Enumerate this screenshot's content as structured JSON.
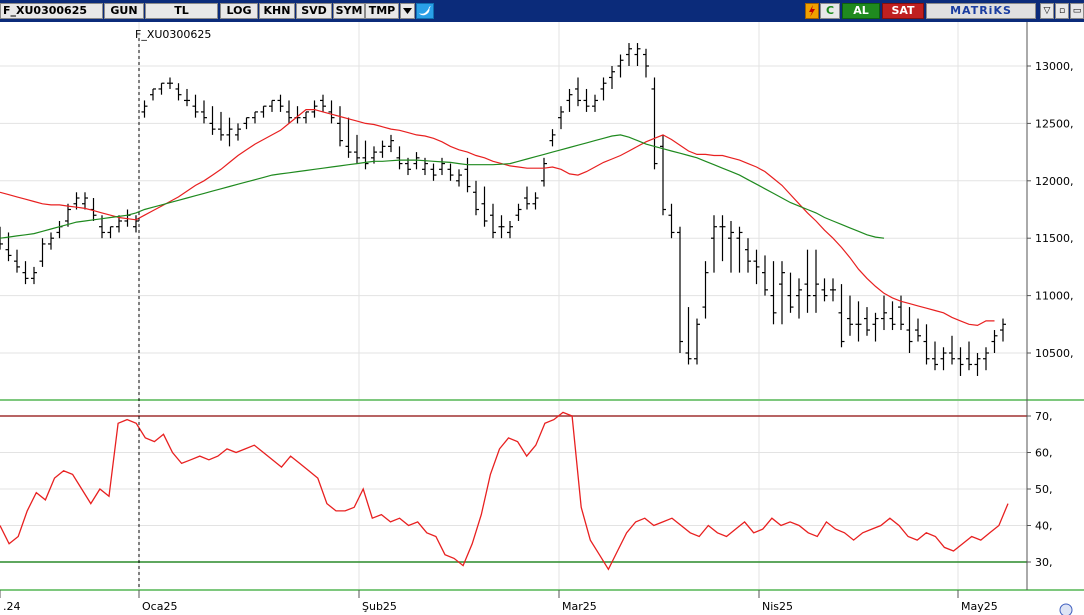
{
  "toolbar": {
    "symbol": "F_XU0300625",
    "period": "GUN",
    "currency": "TL",
    "log": "LOG",
    "khn": "KHN",
    "svd": "SVD",
    "sym": "SYM",
    "tmp": "TMP",
    "dropdown_icon": "chevron-down-icon",
    "twitter_icon": "twitter-icon",
    "lightning_icon": "lightning-icon",
    "c_label": "C",
    "buy_label": "AL",
    "sell_label": "SAT",
    "brand": "MATRiKS",
    "window_controls": [
      "▽",
      "▫",
      "▭"
    ]
  },
  "chart_data": [
    {
      "type": "ohlc",
      "title": "F_XU0300625",
      "yticks": [
        "13000,",
        "12500,",
        "12000,",
        "11500,",
        "11000,",
        "10500,"
      ],
      "ylim": [
        10200,
        13250
      ],
      "xticks": [
        ".24",
        "Oca25",
        "Şub25",
        "Mar25",
        "Nis25",
        "May25"
      ],
      "series": [
        {
          "name": "price",
          "color": "#000000",
          "high": [
            11600,
            11550,
            11400,
            11300,
            11250,
            11500,
            11550,
            11650,
            11800,
            11900,
            11900,
            11850,
            11700,
            11600,
            11700,
            11750,
            11700,
            12700,
            12800,
            12850,
            12900,
            12850,
            12800,
            12750,
            12700,
            12650,
            12600,
            12550,
            12500,
            12550,
            12600,
            12650,
            12700,
            12750,
            12700,
            12650,
            12600,
            12700,
            12750,
            12700,
            12650,
            12550,
            12400,
            12350,
            12300,
            12350,
            12400,
            12300,
            12200,
            12250,
            12200,
            12150,
            12200,
            12150,
            12100,
            12200,
            12000,
            11950,
            11800,
            11700,
            11650,
            11800,
            11950,
            11900,
            12200,
            12450,
            12650,
            12800,
            12900,
            12800,
            12750,
            12900,
            13000,
            13100,
            13200,
            13200,
            13150,
            12900,
            12400,
            11800,
            11600,
            10900,
            10800,
            11300,
            11700,
            11700,
            11650,
            11600,
            11500,
            11400,
            11350,
            11300,
            11300,
            11200,
            11150,
            11400,
            11400,
            11150,
            11150,
            11100,
            11000,
            10950,
            10900,
            10850,
            11000,
            10950,
            11000,
            10900,
            10800,
            10750,
            10600,
            10550,
            10650,
            10550,
            10600,
            10500,
            10550,
            10700,
            10800
          ],
          "low": [
            11400,
            11300,
            11200,
            11100,
            11100,
            11250,
            11400,
            11500,
            11600,
            11750,
            11750,
            11650,
            11500,
            11500,
            11550,
            11600,
            11550,
            12550,
            12700,
            12750,
            12800,
            12700,
            12650,
            12550,
            12500,
            12400,
            12350,
            12300,
            12350,
            12450,
            12500,
            12550,
            12600,
            12600,
            12500,
            12500,
            12500,
            12550,
            12600,
            12500,
            12300,
            12200,
            12150,
            12100,
            12150,
            12200,
            12250,
            12100,
            12050,
            12100,
            12050,
            12000,
            12050,
            12000,
            11950,
            11900,
            11700,
            11600,
            11500,
            11500,
            11500,
            11650,
            11750,
            11750,
            11950,
            12300,
            12450,
            12600,
            12650,
            12600,
            12600,
            12700,
            12800,
            12900,
            13000,
            13000,
            12900,
            12100,
            11700,
            11500,
            10500,
            10400,
            10400,
            10800,
            11200,
            11300,
            11200,
            11200,
            11200,
            11100,
            11000,
            10750,
            10750,
            10850,
            10800,
            10850,
            10850,
            10950,
            10950,
            10550,
            10650,
            10600,
            10650,
            10600,
            10700,
            10700,
            10700,
            10500,
            10600,
            10400,
            10350,
            10350,
            10400,
            10300,
            10350,
            10300,
            10350,
            10500,
            10600
          ],
          "open": [
            11500,
            11400,
            11300,
            11200,
            11150,
            11300,
            11450,
            11550,
            11650,
            11800,
            11800,
            11750,
            11600,
            11550,
            11600,
            11650,
            11600,
            12600,
            12750,
            12800,
            12850,
            12800,
            12700,
            12650,
            12600,
            12500,
            12450,
            12400,
            12400,
            12500,
            12550,
            12600,
            12650,
            12700,
            12600,
            12550,
            12550,
            12600,
            12700,
            12600,
            12500,
            12300,
            12250,
            12200,
            12200,
            12250,
            12300,
            12200,
            12150,
            12150,
            12100,
            12100,
            12100,
            12100,
            12000,
            12100,
            11900,
            11800,
            11700,
            11600,
            11550,
            11700,
            11850,
            11800,
            12000,
            12350,
            12550,
            12700,
            12800,
            12700,
            12650,
            12800,
            12900,
            13000,
            13100,
            13100,
            13100,
            12800,
            12300,
            11700,
            11550,
            10500,
            10450,
            10900,
            11500,
            11600,
            11500,
            11500,
            11400,
            11300,
            11200,
            11000,
            11100,
            11000,
            11000,
            11100,
            11000,
            11050,
            11050,
            10850,
            10800,
            10750,
            10800,
            10750,
            10800,
            10800,
            10900,
            10700,
            10700,
            10600,
            10450,
            10450,
            10500,
            10450,
            10450,
            10400,
            10450,
            10600,
            10700
          ],
          "close": [
            11450,
            11350,
            11250,
            11150,
            11200,
            11450,
            11500,
            11600,
            11750,
            11850,
            11850,
            11700,
            11550,
            11600,
            11650,
            11700,
            11650,
            12650,
            12800,
            12850,
            12850,
            12750,
            12700,
            12600,
            12550,
            12450,
            12400,
            12450,
            12450,
            12550,
            12600,
            12650,
            12700,
            12650,
            12550,
            12550,
            12600,
            12650,
            12650,
            12550,
            12350,
            12250,
            12200,
            12150,
            12250,
            12300,
            12350,
            12150,
            12100,
            12200,
            12150,
            12050,
            12150,
            12050,
            12050,
            11950,
            11750,
            11650,
            11550,
            11600,
            11600,
            11750,
            11800,
            11850,
            12150,
            12400,
            12600,
            12750,
            12700,
            12650,
            12700,
            12850,
            12950,
            13050,
            13150,
            13150,
            13000,
            12150,
            11750,
            11550,
            10600,
            10450,
            10750,
            11200,
            11600,
            11600,
            11550,
            11550,
            11300,
            11250,
            11050,
            10850,
            11200,
            10900,
            11050,
            11000,
            11100,
            11000,
            11050,
            10600,
            10750,
            10750,
            10700,
            10800,
            10850,
            10750,
            10750,
            10600,
            10650,
            10450,
            10400,
            10500,
            10450,
            10400,
            10400,
            10450,
            10500,
            10650,
            10750
          ]
        },
        {
          "name": "fast-ma",
          "color": "#e82020",
          "values": [
            11900,
            11880,
            11860,
            11840,
            11820,
            11800,
            11790,
            11790,
            11780,
            11770,
            11760,
            11740,
            11720,
            11700,
            11680,
            11670,
            11660,
            11700,
            11740,
            11780,
            11820,
            11860,
            11910,
            11960,
            12000,
            12050,
            12100,
            12160,
            12220,
            12270,
            12320,
            12360,
            12400,
            12440,
            12500,
            12560,
            12620,
            12620,
            12600,
            12580,
            12560,
            12540,
            12520,
            12500,
            12490,
            12470,
            12450,
            12440,
            12420,
            12400,
            12390,
            12370,
            12340,
            12300,
            12270,
            12250,
            12220,
            12200,
            12170,
            12150,
            12130,
            12120,
            12110,
            12110,
            12110,
            12120,
            12100,
            12060,
            12050,
            12080,
            12120,
            12160,
            12190,
            12220,
            12260,
            12300,
            12340,
            12370,
            12400,
            12360,
            12310,
            12260,
            12230,
            12230,
            12220,
            12220,
            12200,
            12180,
            12150,
            12120,
            12080,
            12020,
            11960,
            11880,
            11800,
            11720,
            11650,
            11570,
            11500,
            11420,
            11330,
            11230,
            11150,
            11080,
            11020,
            10980,
            10950,
            10930,
            10910,
            10890,
            10870,
            10850,
            10810,
            10780,
            10750,
            10740,
            10780,
            10780
          ],
          "color_key": "red"
        },
        {
          "name": "slow-ma",
          "color": "#1f8a1f",
          "values": [
            11500,
            11510,
            11520,
            11530,
            11540,
            11560,
            11580,
            11600,
            11620,
            11640,
            11650,
            11660,
            11670,
            11680,
            11690,
            11700,
            11720,
            11750,
            11770,
            11790,
            11810,
            11830,
            11850,
            11870,
            11890,
            11910,
            11930,
            11950,
            11970,
            11990,
            12010,
            12030,
            12050,
            12060,
            12070,
            12080,
            12090,
            12100,
            12110,
            12120,
            12130,
            12140,
            12150,
            12160,
            12170,
            12170,
            12175,
            12180,
            12180,
            12180,
            12175,
            12170,
            12165,
            12160,
            12150,
            12140,
            12140,
            12140,
            12140,
            12145,
            12150,
            12170,
            12190,
            12210,
            12230,
            12250,
            12270,
            12290,
            12310,
            12330,
            12350,
            12370,
            12390,
            12400,
            12380,
            12350,
            12320,
            12300,
            12280,
            12260,
            12240,
            12220,
            12200,
            12170,
            12140,
            12110,
            12080,
            12050,
            12010,
            11970,
            11930,
            11890,
            11850,
            11810,
            11780,
            11750,
            11720,
            11680,
            11650,
            11620,
            11590,
            11560,
            11530,
            11510,
            11500
          ]
        }
      ]
    },
    {
      "type": "line",
      "title": "",
      "yticks": [
        "70,",
        "60,",
        "50,",
        "40,",
        "30,"
      ],
      "ylim": [
        25,
        75
      ],
      "levels": [
        {
          "value": 70,
          "color": "#a03030"
        },
        {
          "value": 30,
          "color": "#2a8a2a"
        }
      ],
      "series": [
        {
          "name": "oscillator",
          "color": "#e82020",
          "values": [
            40,
            35,
            37,
            44,
            49,
            47,
            53,
            55,
            54,
            50,
            46,
            50,
            48,
            68,
            69,
            68,
            64,
            63,
            65,
            60,
            57,
            58,
            59,
            58,
            59,
            61,
            60,
            61,
            62,
            60,
            58,
            56,
            59,
            57,
            55,
            53,
            46,
            44,
            44,
            45,
            50,
            42,
            43,
            41,
            42,
            40,
            41,
            38,
            37,
            32,
            31,
            29,
            35,
            43,
            54,
            61,
            64,
            63,
            59,
            62,
            68,
            69,
            71,
            70,
            45,
            36,
            32,
            28,
            33,
            38,
            41,
            42,
            40,
            41,
            42,
            40,
            38,
            37,
            40,
            38,
            37,
            39,
            41,
            38,
            39,
            42,
            40,
            41,
            40,
            38,
            37,
            41,
            39,
            38,
            36,
            38,
            39,
            40,
            42,
            40,
            37,
            36,
            38,
            37,
            34,
            33,
            35,
            37,
            36,
            38,
            40,
            46
          ],
          "color_key": "red"
        }
      ]
    }
  ]
}
